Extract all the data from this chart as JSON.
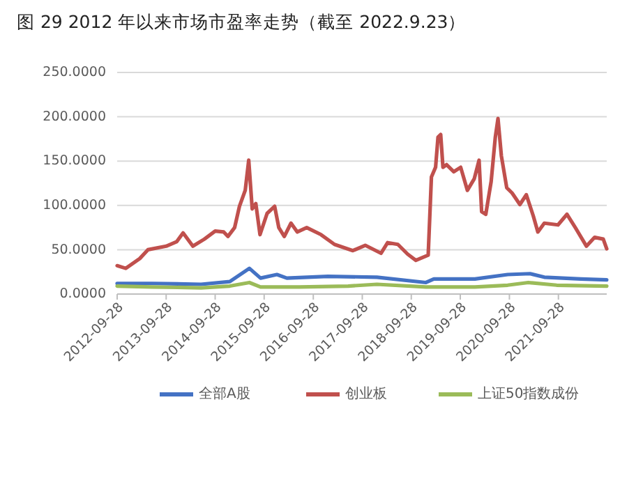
{
  "chart_data": {
    "type": "line",
    "title": "图 29 2012 年以来市场市盈率走势（截至 2022.9.23）",
    "xlim": [
      "2012-09-28",
      "2022-09-23"
    ],
    "xticks": [
      "2012-09-28",
      "2013-09-28",
      "2014-09-28",
      "2015-09-28",
      "2016-09-28",
      "2017-09-28",
      "2018-09-28",
      "2019-09-28",
      "2020-09-28",
      "2021-09-28"
    ],
    "ylim": [
      0,
      250
    ],
    "yticks": [
      {
        "value": 0,
        "label": "0.0000"
      },
      {
        "value": 50,
        "label": "50.0000"
      },
      {
        "value": 100,
        "label": "100.0000"
      },
      {
        "value": 150,
        "label": "150.0000"
      },
      {
        "value": 200,
        "label": "200.0000"
      },
      {
        "value": 250,
        "label": "250.0000"
      }
    ],
    "grid": "y",
    "legend": "bottom",
    "marker": "none",
    "line_style": "solid",
    "series": [
      {
        "name": "全部A股",
        "color": "#4472c4",
        "x": [
          "2012-09-28",
          "2013-06-15",
          "2014-06-15",
          "2015-01-15",
          "2015-06-10",
          "2015-09-01",
          "2016-01-01",
          "2016-03-15",
          "2017-01-15",
          "2018-01-15",
          "2019-01-15",
          "2019-03-15",
          "2020-01-15",
          "2020-09-15",
          "2021-03-01",
          "2021-06-15",
          "2022-03-15",
          "2022-09-23"
        ],
        "values": [
          12,
          12,
          11,
          14,
          29,
          18,
          22,
          18,
          20,
          19,
          13,
          17,
          17,
          22,
          23,
          19,
          17,
          16
        ]
      },
      {
        "name": "创业板",
        "color": "#c0504d",
        "x": [
          "2012-09-28",
          "2012-12-01",
          "2013-03-15",
          "2013-05-15",
          "2013-09-28",
          "2013-12-15",
          "2014-02-01",
          "2014-04-15",
          "2014-07-10",
          "2014-09-28",
          "2014-12-01",
          "2015-01-01",
          "2015-02-20",
          "2015-03-28",
          "2015-05-10",
          "2015-06-05",
          "2015-07-01",
          "2015-07-28",
          "2015-08-28",
          "2015-10-20",
          "2015-12-15",
          "2016-01-15",
          "2016-02-25",
          "2016-04-15",
          "2016-06-01",
          "2016-08-10",
          "2016-11-25",
          "2017-03-05",
          "2017-07-20",
          "2017-10-20",
          "2018-02-15",
          "2018-04-05",
          "2018-06-20",
          "2018-09-01",
          "2018-11-01",
          "2019-02-01",
          "2019-02-25",
          "2019-03-28",
          "2019-04-15",
          "2019-05-05",
          "2019-05-22",
          "2019-06-18",
          "2019-08-10",
          "2019-10-01",
          "2019-11-20",
          "2020-01-10",
          "2020-02-15",
          "2020-03-05",
          "2020-04-05",
          "2020-05-15",
          "2020-06-15",
          "2020-07-05",
          "2020-07-30",
          "2020-09-08",
          "2020-10-18",
          "2020-12-15",
          "2021-02-01",
          "2021-03-25",
          "2021-04-28",
          "2021-06-15",
          "2021-09-25",
          "2021-12-01",
          "2022-02-01",
          "2022-04-25",
          "2022-06-25",
          "2022-08-28",
          "2022-09-23"
        ],
        "values": [
          32,
          29,
          40,
          50,
          54,
          59,
          69,
          54,
          62,
          71,
          70,
          65,
          75,
          99,
          117,
          151,
          96,
          102,
          67,
          91,
          99,
          75,
          65,
          80,
          70,
          75,
          67,
          56,
          49,
          55,
          46,
          58,
          56,
          45,
          38,
          44,
          132,
          143,
          177,
          180,
          143,
          146,
          138,
          143,
          117,
          130,
          151,
          93,
          90,
          127,
          177,
          198,
          156,
          120,
          114,
          101,
          112,
          88,
          70,
          80,
          78,
          90,
          75,
          54,
          64,
          62,
          51
        ]
      },
      {
        "name": "上证50指数成份",
        "color": "#9bbb59",
        "x": [
          "2012-09-28",
          "2013-06-15",
          "2014-06-15",
          "2015-01-15",
          "2015-06-10",
          "2015-09-01",
          "2016-06-15",
          "2017-06-15",
          "2018-01-15",
          "2019-01-15",
          "2020-01-15",
          "2020-09-15",
          "2021-02-15",
          "2021-09-15",
          "2022-09-23"
        ],
        "values": [
          9,
          8,
          7,
          9,
          13,
          8,
          8,
          9,
          11,
          8,
          8,
          10,
          13,
          10,
          9
        ]
      }
    ]
  }
}
